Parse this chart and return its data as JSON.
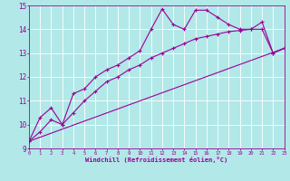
{
  "xlabel": "Windchill (Refroidissement éolien,°C)",
  "bg_color": "#b2e8e8",
  "grid_color": "#ffffff",
  "line_color": "#990099",
  "xlim": [
    0,
    23
  ],
  "ylim": [
    9,
    15
  ],
  "xticks": [
    0,
    1,
    2,
    3,
    4,
    5,
    6,
    7,
    8,
    9,
    10,
    11,
    12,
    13,
    14,
    15,
    16,
    17,
    18,
    19,
    20,
    21,
    22,
    23
  ],
  "yticks": [
    9,
    10,
    11,
    12,
    13,
    14,
    15
  ],
  "line1_x": [
    0,
    1,
    2,
    3,
    4,
    5,
    6,
    7,
    8,
    9,
    10,
    11,
    12,
    13,
    14,
    15,
    16,
    17,
    18,
    19,
    20,
    21,
    22,
    23
  ],
  "line1_y": [
    9.3,
    10.3,
    10.7,
    10.0,
    11.3,
    11.5,
    12.0,
    12.3,
    12.5,
    12.8,
    13.1,
    14.0,
    14.85,
    14.2,
    14.0,
    14.8,
    14.8,
    14.5,
    14.2,
    14.0,
    14.0,
    14.3,
    13.0,
    13.2
  ],
  "line2_x": [
    0,
    1,
    2,
    3,
    4,
    5,
    6,
    7,
    8,
    9,
    10,
    11,
    12,
    13,
    14,
    15,
    16,
    17,
    18,
    19,
    20,
    21,
    22,
    23
  ],
  "line2_y": [
    9.3,
    9.7,
    10.2,
    10.0,
    10.5,
    11.0,
    11.4,
    11.8,
    12.0,
    12.3,
    12.5,
    12.8,
    13.0,
    13.2,
    13.4,
    13.6,
    13.7,
    13.8,
    13.9,
    13.95,
    14.0,
    14.0,
    13.0,
    13.2
  ],
  "line3_x": [
    0,
    23
  ],
  "line3_y": [
    9.3,
    13.2
  ]
}
